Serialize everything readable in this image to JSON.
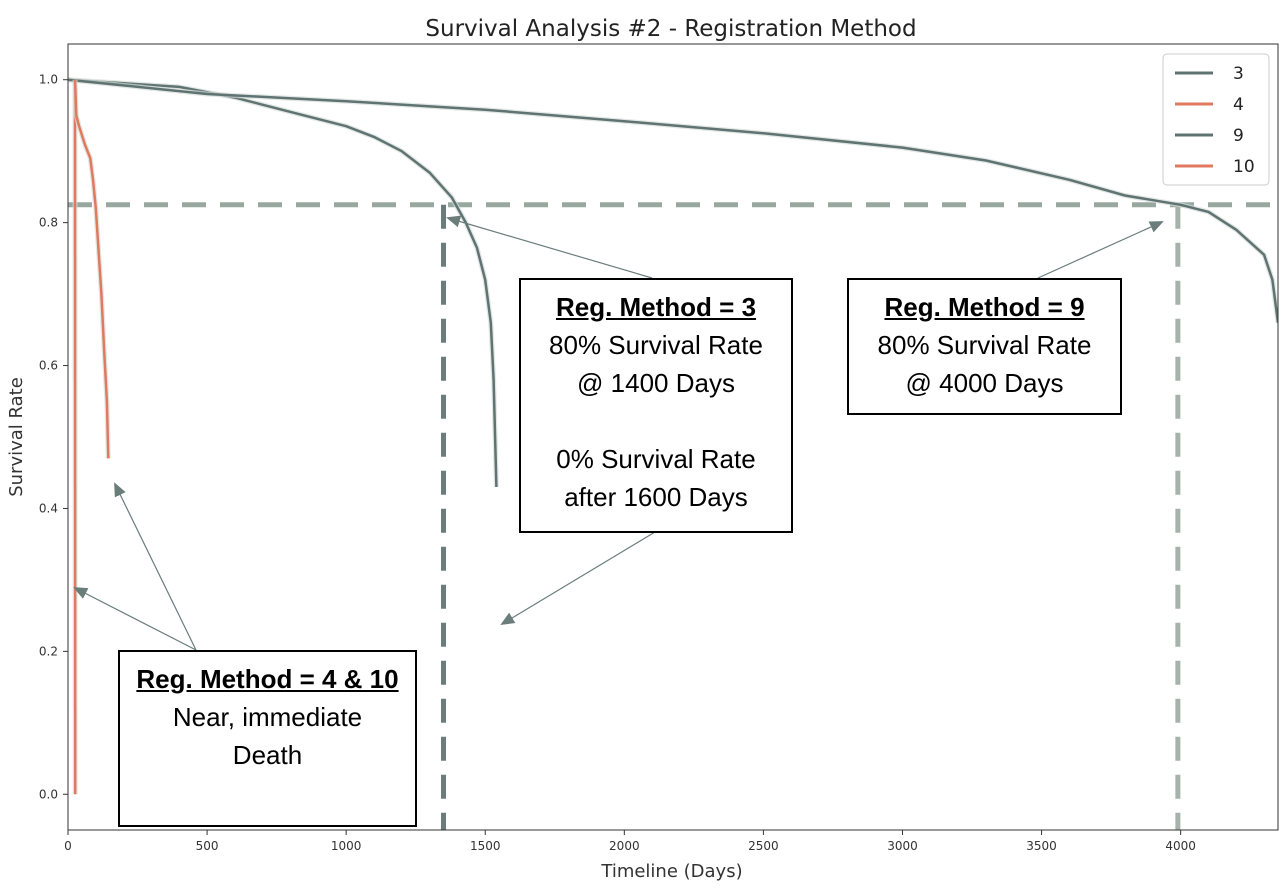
{
  "chart_data": {
    "type": "line",
    "title": "Survival Analysis #2 - Registration Method",
    "xlabel": "Timeline (Days)",
    "ylabel": "Survival Rate",
    "xlim": [
      0,
      4350
    ],
    "ylim": [
      -0.05,
      1.05
    ],
    "xticks": [
      0,
      500,
      1000,
      1500,
      2000,
      2500,
      3000,
      3500,
      4000
    ],
    "yticks": [
      0.0,
      0.2,
      0.4,
      0.6,
      0.8,
      1.0
    ],
    "grid": false,
    "legend": {
      "placement": "top-right",
      "entries": [
        "3",
        "4",
        "9",
        "10"
      ]
    },
    "series": [
      {
        "name": "3",
        "color": "#5f7472",
        "points": [
          [
            0,
            1.0
          ],
          [
            200,
            0.995
          ],
          [
            400,
            0.99
          ],
          [
            600,
            0.975
          ],
          [
            800,
            0.955
          ],
          [
            1000,
            0.935
          ],
          [
            1100,
            0.92
          ],
          [
            1200,
            0.9
          ],
          [
            1300,
            0.87
          ],
          [
            1380,
            0.835
          ],
          [
            1430,
            0.8
          ],
          [
            1470,
            0.765
          ],
          [
            1500,
            0.72
          ],
          [
            1520,
            0.66
          ],
          [
            1530,
            0.58
          ],
          [
            1540,
            0.43
          ]
        ]
      },
      {
        "name": "4",
        "color": "#e07a5f",
        "points": [
          [
            25,
            1.0
          ],
          [
            26,
            0.0
          ]
        ]
      },
      {
        "name": "9",
        "color": "#5f7472",
        "points": [
          [
            0,
            1.0
          ],
          [
            500,
            0.98
          ],
          [
            1000,
            0.97
          ],
          [
            1500,
            0.958
          ],
          [
            2000,
            0.942
          ],
          [
            2500,
            0.925
          ],
          [
            3000,
            0.905
          ],
          [
            3300,
            0.887
          ],
          [
            3600,
            0.86
          ],
          [
            3800,
            0.838
          ],
          [
            4000,
            0.825
          ],
          [
            4100,
            0.815
          ],
          [
            4200,
            0.79
          ],
          [
            4300,
            0.755
          ],
          [
            4330,
            0.72
          ],
          [
            4350,
            0.66
          ]
        ]
      },
      {
        "name": "10",
        "color": "#e07a5f",
        "points": [
          [
            25,
            1.0
          ],
          [
            30,
            0.95
          ],
          [
            40,
            0.935
          ],
          [
            60,
            0.91
          ],
          [
            80,
            0.89
          ],
          [
            90,
            0.86
          ],
          [
            100,
            0.82
          ],
          [
            110,
            0.76
          ],
          [
            120,
            0.7
          ],
          [
            130,
            0.62
          ],
          [
            140,
            0.55
          ],
          [
            145,
            0.47
          ]
        ]
      }
    ],
    "reference_lines": {
      "horizontal_y": 0.825,
      "vertical_x": [
        1350,
        3990
      ]
    },
    "annotations": [
      {
        "heading": "Reg. Method = 3",
        "lines": [
          "80% Survival Rate",
          "@ 1400 Days",
          "",
          "0% Survival Rate",
          "after 1600 Days"
        ]
      },
      {
        "heading": "Reg. Method = 9",
        "lines": [
          "80% Survival Rate",
          "@ 4000 Days"
        ]
      },
      {
        "heading": "Reg. Method = 4 & 10",
        "lines": [
          "Near, immediate",
          "Death"
        ]
      }
    ]
  }
}
